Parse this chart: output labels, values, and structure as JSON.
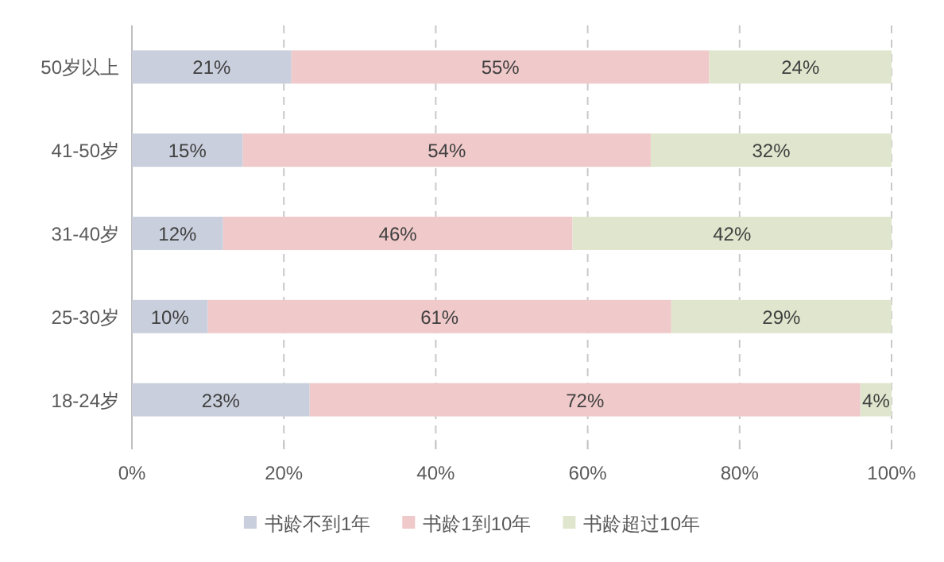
{
  "chart_data": {
    "type": "bar",
    "orientation": "horizontal",
    "stacked": true,
    "categories": [
      "50岁以上",
      "41-50岁",
      "31-40岁",
      "25-30岁",
      "18-24岁"
    ],
    "series": [
      {
        "name": "书龄不到1年",
        "color": "#c9cfdc",
        "values": [
          21,
          14.6,
          12,
          10,
          23.4
        ]
      },
      {
        "name": "书龄1到10年",
        "color": "#f0c9ca",
        "values": [
          55,
          53.7,
          46,
          61,
          72.5
        ]
      },
      {
        "name": "书龄超过10年",
        "color": "#dfe6cd",
        "values": [
          24,
          31.7,
          42,
          29,
          4.1
        ]
      }
    ],
    "xlim": [
      0,
      100
    ],
    "xticks": [
      {
        "value": 0,
        "label": "0%"
      },
      {
        "value": 20,
        "label": "20%"
      },
      {
        "value": 40,
        "label": "40%"
      },
      {
        "value": 60,
        "label": "60%"
      },
      {
        "value": 80,
        "label": "80%"
      },
      {
        "value": 100,
        "label": "100%"
      }
    ],
    "value_labels": [
      [
        "21%",
        "15%",
        "12%",
        "10%",
        "23%"
      ],
      [
        "55%",
        "54%",
        "46%",
        "61%",
        "72%"
      ],
      [
        "24%",
        "32%",
        "42%",
        "29%",
        "4%"
      ]
    ],
    "grid": "x",
    "legend": "bottom"
  }
}
